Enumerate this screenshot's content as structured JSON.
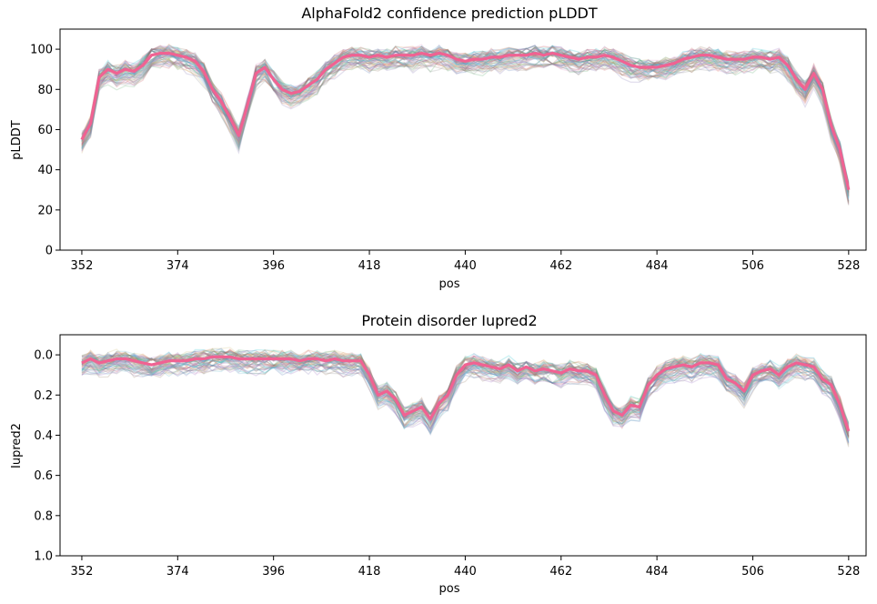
{
  "chart_data": [
    {
      "type": "line",
      "title": "AlphaFold2 confidence prediction pLDDT",
      "xlabel": "pos",
      "ylabel": "pLDDT",
      "xlim": [
        347,
        532
      ],
      "ylim": [
        0,
        110
      ],
      "xticks": [
        352,
        374,
        396,
        418,
        440,
        462,
        484,
        506,
        528
      ],
      "yticks": [
        0,
        20,
        40,
        60,
        80,
        100
      ],
      "y_inverted": false,
      "grid": false,
      "series": [
        {
          "role": "highlight",
          "color": "#f06292",
          "x": [
            352,
            354,
            356,
            358,
            360,
            362,
            364,
            366,
            368,
            370,
            372,
            374,
            376,
            378,
            380,
            382,
            384,
            386,
            388,
            390,
            392,
            394,
            396,
            398,
            400,
            402,
            404,
            406,
            408,
            410,
            412,
            414,
            416,
            418,
            420,
            422,
            424,
            426,
            428,
            430,
            432,
            434,
            436,
            438,
            440,
            442,
            444,
            446,
            448,
            450,
            452,
            454,
            456,
            458,
            460,
            462,
            464,
            466,
            468,
            470,
            472,
            474,
            476,
            478,
            480,
            482,
            484,
            486,
            488,
            490,
            492,
            494,
            496,
            498,
            500,
            502,
            504,
            506,
            508,
            510,
            512,
            514,
            516,
            518,
            520,
            522,
            524,
            526,
            528
          ],
          "values": [
            55,
            63,
            86,
            90,
            88,
            90,
            89,
            92,
            97,
            98,
            98,
            97,
            96,
            94,
            89,
            80,
            74,
            66,
            57,
            72,
            88,
            91,
            85,
            80,
            78,
            79,
            82,
            85,
            90,
            93,
            96,
            97,
            97,
            96,
            97,
            96,
            97,
            97,
            97,
            98,
            97,
            98,
            97,
            95,
            94,
            95,
            95,
            96,
            96,
            97,
            97,
            97,
            98,
            97,
            98,
            97,
            96,
            95,
            96,
            96,
            97,
            96,
            94,
            92,
            91,
            91,
            91,
            92,
            93,
            95,
            96,
            97,
            97,
            96,
            95,
            95,
            95,
            96,
            96,
            95,
            96,
            92,
            85,
            80,
            88,
            80,
            62,
            50,
            30
          ]
        }
      ],
      "ensemble": {
        "count": 60,
        "colors": [
          "#4c72b0",
          "#dd8452",
          "#55a868",
          "#c44e52",
          "#8172b3",
          "#937860",
          "#da8bc3",
          "#8c8c8c",
          "#ccb974",
          "#64b5cd",
          "#9467bd",
          "#17becf"
        ],
        "spread_lower": 6,
        "spread_upper": 2
      }
    },
    {
      "type": "line",
      "title": "Protein disorder Iupred2",
      "xlabel": "pos",
      "ylabel": "Iupred2",
      "xlim": [
        347,
        532
      ],
      "ylim": [
        1.0,
        -0.1
      ],
      "xticks": [
        352,
        374,
        396,
        418,
        440,
        462,
        484,
        506,
        528
      ],
      "yticks": [
        0.0,
        0.2,
        0.4,
        0.6,
        0.8,
        1.0
      ],
      "y_inverted": true,
      "grid": false,
      "series": [
        {
          "role": "highlight",
          "color": "#f06292",
          "x": [
            352,
            354,
            356,
            358,
            360,
            362,
            364,
            366,
            368,
            370,
            372,
            374,
            376,
            378,
            380,
            382,
            384,
            386,
            388,
            390,
            392,
            394,
            396,
            398,
            400,
            402,
            404,
            406,
            408,
            410,
            412,
            414,
            416,
            418,
            420,
            422,
            424,
            426,
            428,
            430,
            432,
            434,
            436,
            438,
            440,
            442,
            444,
            446,
            448,
            450,
            452,
            454,
            456,
            458,
            460,
            462,
            464,
            466,
            468,
            470,
            472,
            474,
            476,
            478,
            480,
            482,
            484,
            486,
            488,
            490,
            492,
            494,
            496,
            498,
            500,
            502,
            504,
            506,
            508,
            510,
            512,
            514,
            516,
            518,
            520,
            522,
            524,
            526,
            528
          ],
          "values": [
            0.04,
            0.02,
            0.04,
            0.03,
            0.02,
            0.02,
            0.03,
            0.04,
            0.05,
            0.04,
            0.03,
            0.03,
            0.03,
            0.02,
            0.02,
            0.01,
            0.01,
            0.01,
            0.02,
            0.02,
            0.02,
            0.02,
            0.02,
            0.02,
            0.02,
            0.03,
            0.02,
            0.02,
            0.03,
            0.02,
            0.03,
            0.03,
            0.03,
            0.1,
            0.2,
            0.18,
            0.22,
            0.3,
            0.28,
            0.26,
            0.32,
            0.24,
            0.2,
            0.1,
            0.05,
            0.04,
            0.05,
            0.06,
            0.07,
            0.05,
            0.08,
            0.06,
            0.08,
            0.07,
            0.08,
            0.09,
            0.07,
            0.08,
            0.08,
            0.1,
            0.2,
            0.28,
            0.3,
            0.25,
            0.26,
            0.15,
            0.1,
            0.07,
            0.06,
            0.05,
            0.06,
            0.04,
            0.04,
            0.05,
            0.12,
            0.14,
            0.18,
            0.1,
            0.08,
            0.07,
            0.1,
            0.06,
            0.04,
            0.05,
            0.06,
            0.12,
            0.15,
            0.25,
            0.38
          ]
        }
      ],
      "ensemble": {
        "count": 60,
        "colors": [
          "#4c72b0",
          "#dd8452",
          "#55a868",
          "#c44e52",
          "#8172b3",
          "#937860",
          "#da8bc3",
          "#8c8c8c",
          "#ccb974",
          "#64b5cd",
          "#9467bd",
          "#17becf"
        ],
        "spread_lower": 0.02,
        "spread_upper": 0.06
      }
    }
  ]
}
